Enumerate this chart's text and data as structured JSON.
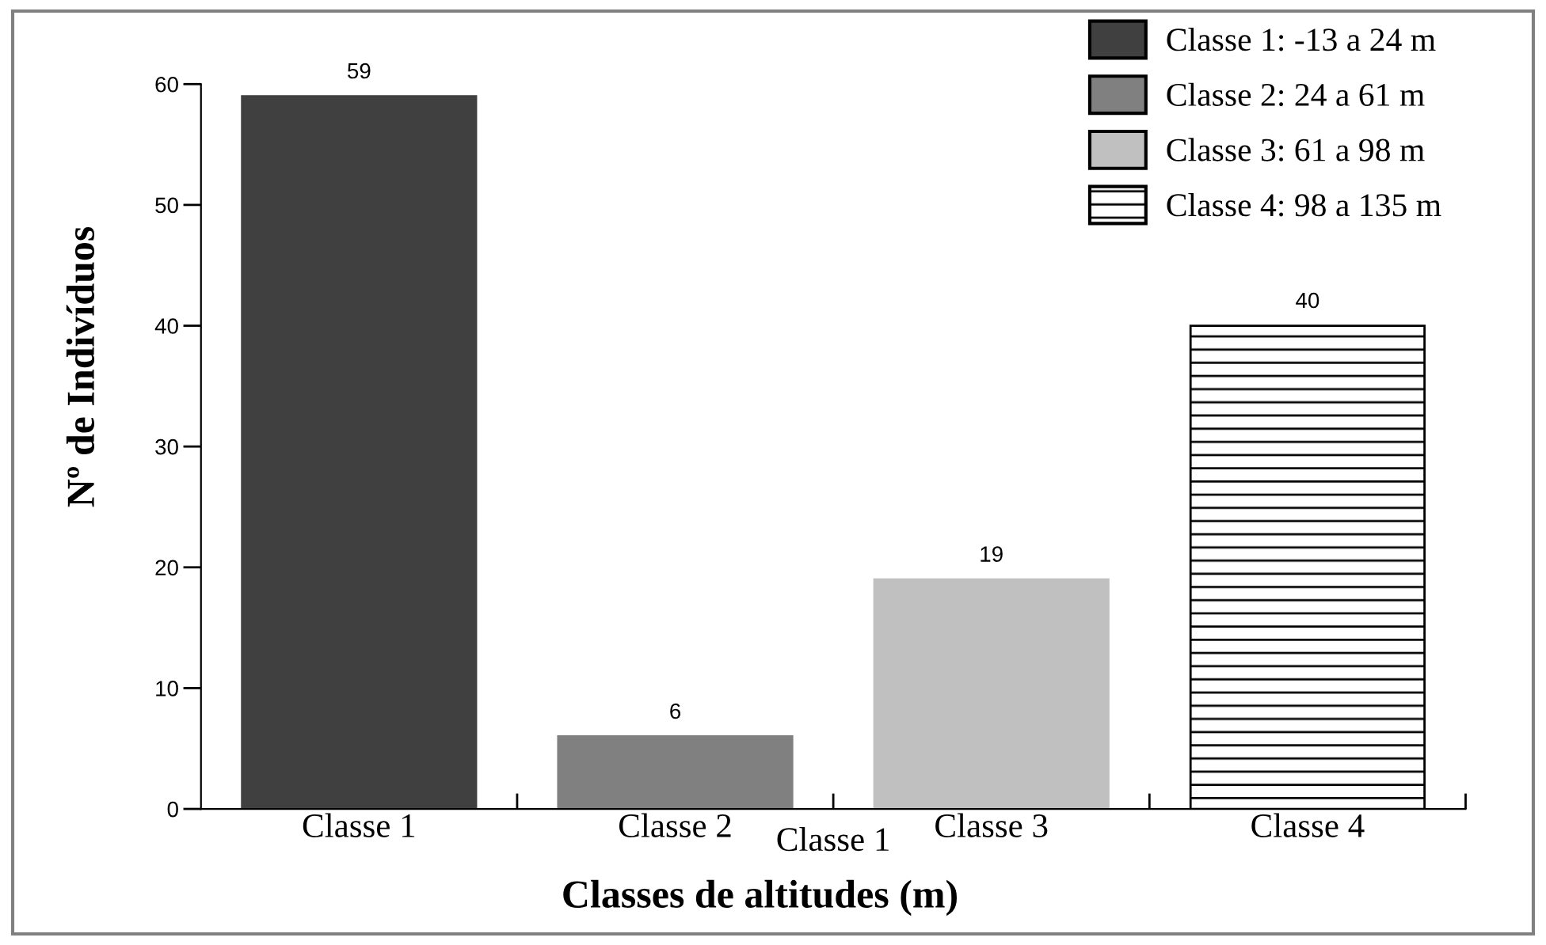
{
  "chart_data": {
    "type": "bar",
    "xlabel": "Classes de altitudes (m)",
    "ylabel": "Nº de Indivíduos",
    "categories": [
      "Classe 1",
      "Classe 2",
      "Classe 3",
      "Classe 4"
    ],
    "series": [
      {
        "name": "Classe 1: -13 a 24 m",
        "color": "#404040",
        "values": [
          59,
          null,
          null,
          null
        ]
      },
      {
        "name": "Classe 2: 24 a 61 m",
        "color": "#808080",
        "values": [
          null,
          6,
          null,
          null
        ]
      },
      {
        "name": "Classe 3: 61 a 98 m",
        "color": "#c0c0c0",
        "values": [
          null,
          null,
          19,
          null
        ]
      },
      {
        "name": "Classe 4: 98 a 135 m",
        "color": "#000000",
        "values": [
          null,
          null,
          null,
          40
        ]
      }
    ],
    "ylim": [
      0,
      60
    ],
    "yticks": [
      0,
      10,
      20,
      30,
      40,
      50,
      60
    ],
    "data_labels": true,
    "legend": "top right",
    "annotations": [
      "Classe 1"
    ]
  }
}
